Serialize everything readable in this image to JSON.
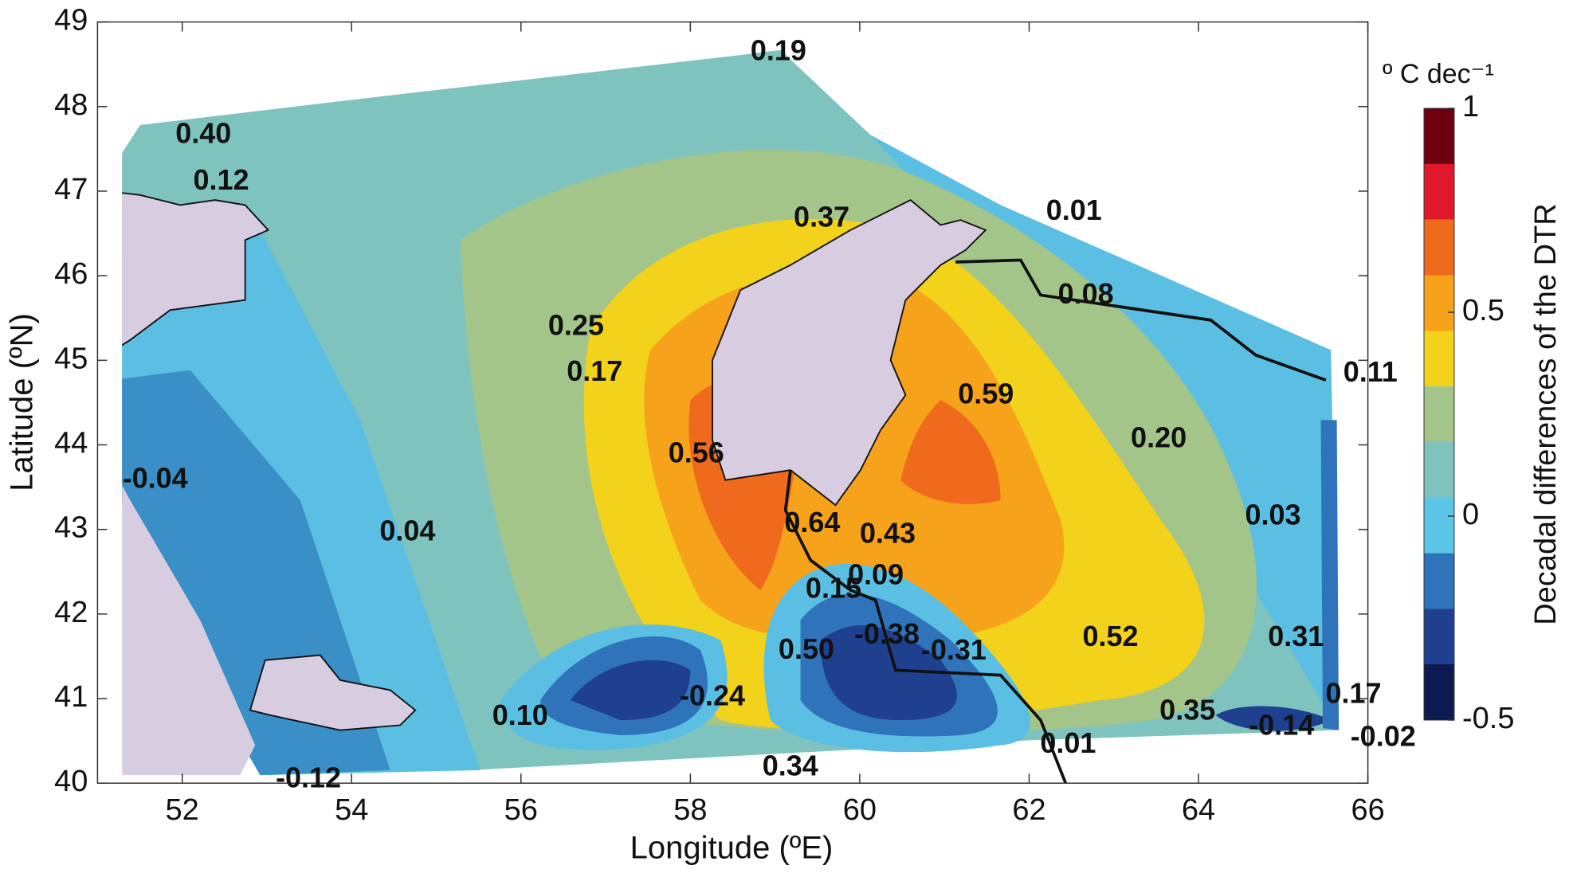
{
  "chart_data": {
    "type": "contour-map",
    "x_label": "Longitude (ºE)",
    "y_label": "Latitude (ºN)",
    "xlim": [
      51,
      66
    ],
    "xticks": [
      52,
      54,
      56,
      58,
      60,
      62,
      64,
      66
    ],
    "ylim": [
      40,
      49
    ],
    "yticks": [
      40,
      41,
      42,
      43,
      44,
      45,
      46,
      47,
      48,
      49
    ],
    "colorbar": {
      "label": "Decadal differences of the DTR",
      "unit": "º C dec⁻¹",
      "clim": [
        -0.5,
        1
      ],
      "ticks": [
        -0.5,
        0,
        0.5,
        1
      ],
      "colormap": [
        "#0d1a4f",
        "#1f3f8f",
        "#2f74bb",
        "#5cc6e8",
        "#7fc3bf",
        "#a3c58a",
        "#f3d21c",
        "#f7a21b",
        "#ef6a1c",
        "#e0192a",
        "#6e0010"
      ]
    },
    "points": {
      "x": [
        59.04,
        52.25,
        52.46,
        62.53,
        59.55,
        62.67,
        56.65,
        56.87,
        66.03,
        61.49,
        63.53,
        58.07,
        51.68,
        54.66,
        64.88,
        59.44,
        60.33,
        60.19,
        59.69,
        60.32,
        61.11,
        59.37,
        62.96,
        65.15,
        58.26,
        65.83,
        55.99,
        63.87,
        64.98,
        66.18,
        62.46,
        59.18,
        53.49
      ],
      "y": [
        48.64,
        47.66,
        47.11,
        46.75,
        46.67,
        45.76,
        45.39,
        44.85,
        44.84,
        44.58,
        44.06,
        43.88,
        43.58,
        42.96,
        43.15,
        43.06,
        42.93,
        42.44,
        42.28,
        41.74,
        41.55,
        41.56,
        41.71,
        41.71,
        41.01,
        41.04,
        40.78,
        40.84,
        40.66,
        40.53,
        40.45,
        40.18,
        40.04
      ],
      "values": [
        0.19,
        0.4,
        0.12,
        0.01,
        0.37,
        0.08,
        0.25,
        0.17,
        0.11,
        0.59,
        0.2,
        0.56,
        -0.04,
        0.04,
        0.03,
        0.64,
        0.43,
        0.09,
        0.15,
        -0.38,
        -0.31,
        0.5,
        0.52,
        0.31,
        -0.24,
        0.17,
        0.1,
        0.35,
        -0.14,
        -0.02,
        0.01,
        0.34,
        -0.12
      ],
      "value_labels": [
        "0.19",
        "0.40",
        "0.12",
        "0.01",
        "0.37",
        "0.08",
        "0.25",
        "0.17",
        "0.11",
        "0.59",
        "0.20",
        "0.56",
        "-0.04",
        "0.04",
        "0.03",
        "0.64",
        "0.43",
        "0.09",
        "0.15",
        "-0.38",
        "-0.31",
        "0.50",
        "0.52",
        "0.31",
        "-0.24",
        "0.17",
        "0.10",
        "0.35",
        "-0.14",
        "-0.02",
        "0.01",
        "0.34",
        "-0.12"
      ]
    }
  }
}
